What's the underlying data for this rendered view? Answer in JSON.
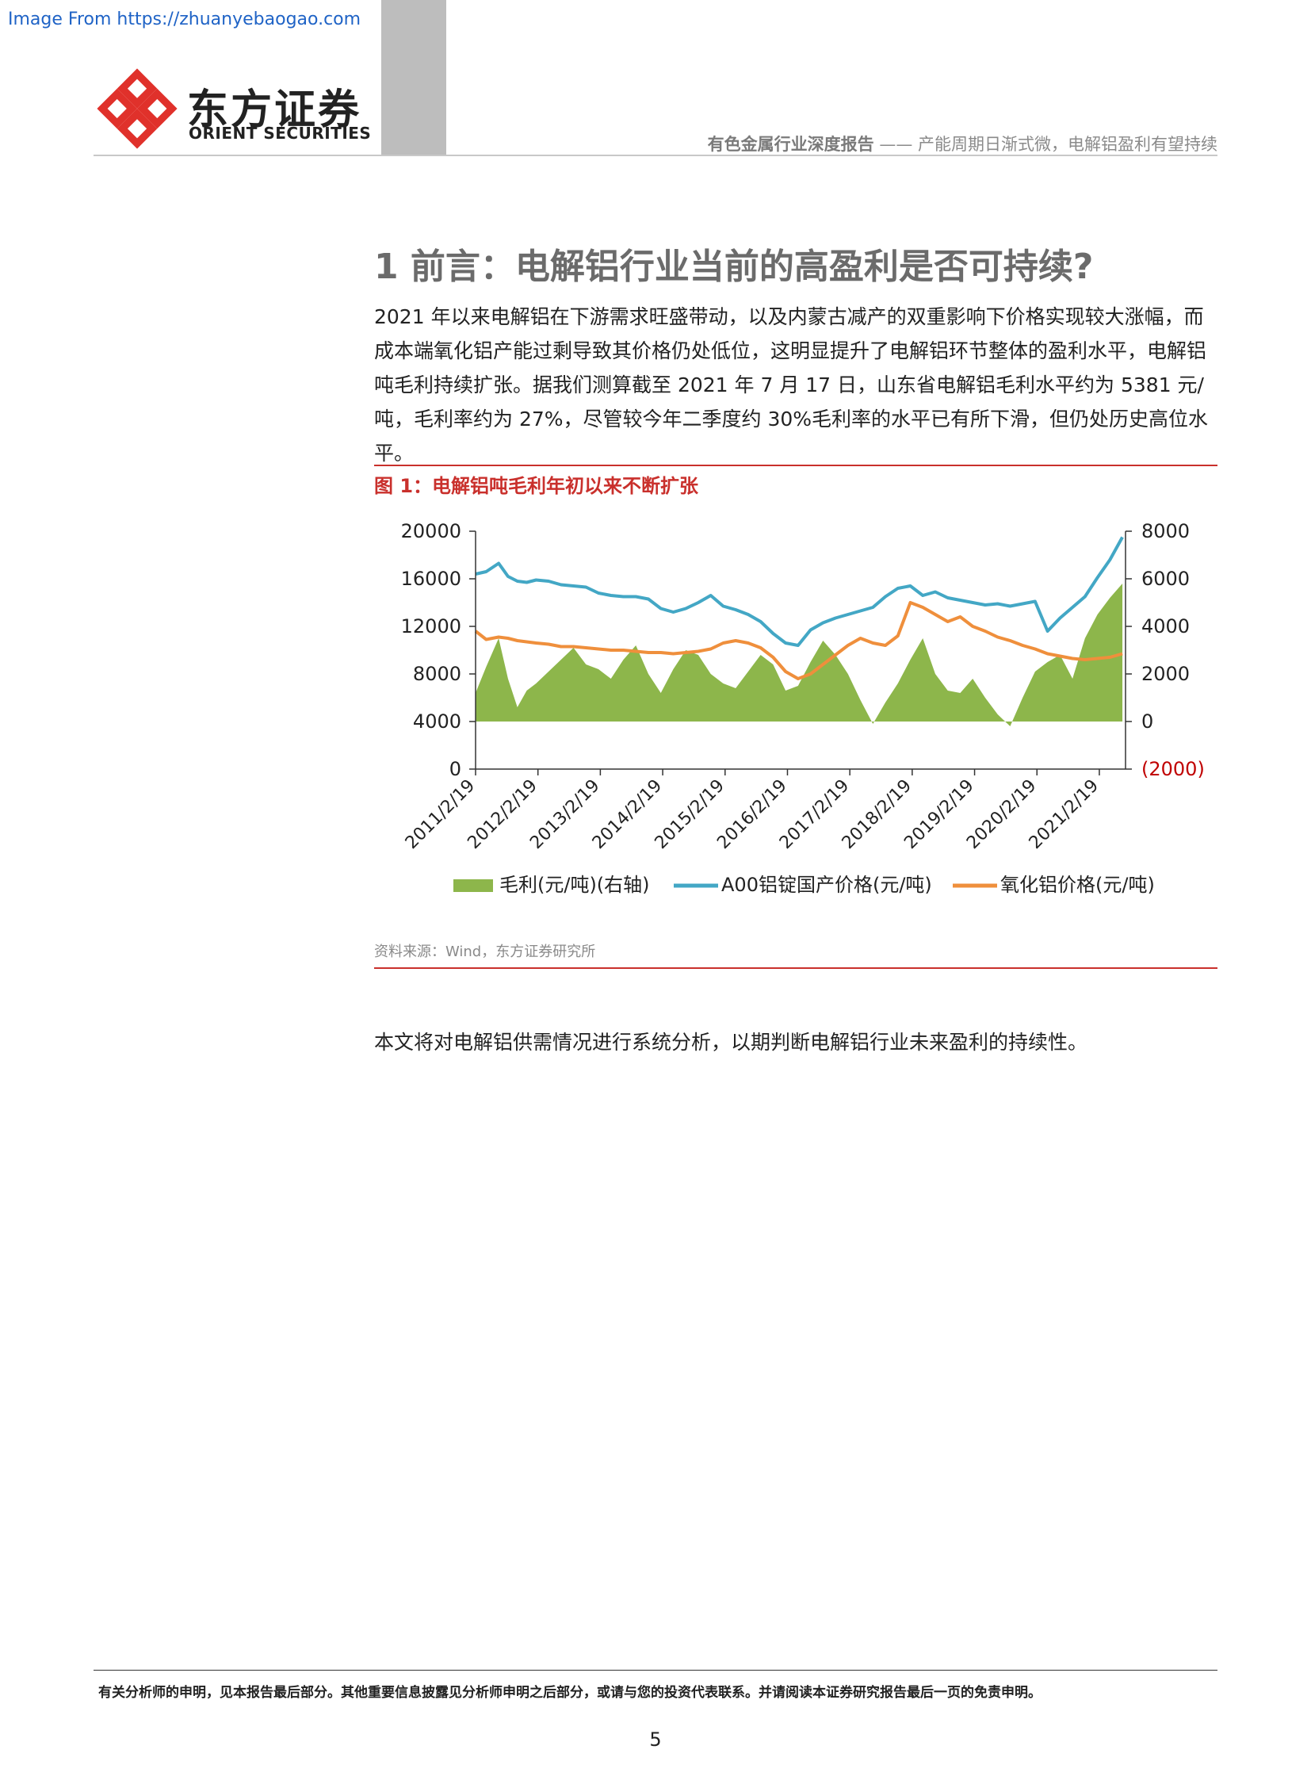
{
  "watermark": "Image From https://zhuanyebaogao.com",
  "logo": {
    "cn": "东方证券",
    "en": "ORIENT SECURITIES"
  },
  "header": {
    "report_type": "有色金属行业深度报告",
    "separator": " —— ",
    "subtitle": "产能周期日渐式微，电解铝盈利有望持续"
  },
  "section": {
    "title": "1 前言：电解铝行业当前的高盈利是否可持续?",
    "paragraph": "2021 年以来电解铝在下游需求旺盛带动，以及内蒙古减产的双重影响下价格实现较大涨幅，而成本端氧化铝产能过剩导致其价格仍处低位，这明显提升了电解铝环节整体的盈利水平，电解铝吨毛利持续扩张。据我们测算截至 2021 年 7 月 17 日，山东省电解铝毛利水平约为 5381 元/吨，毛利率约为 27%，尽管较今年二季度约 30%毛利率的水平已有所下滑，但仍处历史高位水平。"
  },
  "figure": {
    "title": "图 1：电解铝吨毛利年初以来不断扩张",
    "source": "资料来源：Wind，东方证券研究所"
  },
  "chart_data": {
    "type": "line",
    "left_axis": {
      "ticks": [
        "0",
        "4000",
        "8000",
        "12000",
        "16000",
        "20000"
      ],
      "range": [
        0,
        20000
      ]
    },
    "right_axis": {
      "ticks": [
        "(2000)",
        "0",
        "2000",
        "4000",
        "6000",
        "8000"
      ],
      "range": [
        -2000,
        8000
      ],
      "negative_color": "#c00000"
    },
    "x_ticks": [
      "2011/2/19",
      "2012/2/19",
      "2013/2/19",
      "2014/2/19",
      "2015/2/19",
      "2016/2/19",
      "2017/2/19",
      "2018/2/19",
      "2019/2/19",
      "2020/2/19",
      "2021/2/19"
    ],
    "x": [
      2011.13,
      2011.3,
      2011.5,
      2011.65,
      2011.8,
      2011.95,
      2012.1,
      2012.3,
      2012.5,
      2012.7,
      2012.9,
      2013.1,
      2013.3,
      2013.5,
      2013.7,
      2013.9,
      2014.1,
      2014.3,
      2014.5,
      2014.7,
      2014.9,
      2015.1,
      2015.3,
      2015.5,
      2015.7,
      2015.9,
      2016.1,
      2016.3,
      2016.5,
      2016.7,
      2016.9,
      2017.1,
      2017.3,
      2017.5,
      2017.7,
      2017.9,
      2018.1,
      2018.3,
      2018.5,
      2018.7,
      2018.9,
      2019.1,
      2019.3,
      2019.5,
      2019.7,
      2019.9,
      2020.1,
      2020.3,
      2020.5,
      2020.7,
      2020.9,
      2021.1,
      2021.3,
      2021.5
    ],
    "series": [
      {
        "name": "毛利(元/吨)(右轴)",
        "type": "area",
        "axis": "right",
        "color": "#8db64b",
        "values": [
          1200,
          2300,
          3500,
          1800,
          600,
          1300,
          1600,
          2100,
          2600,
          3100,
          2400,
          2200,
          1800,
          2600,
          3200,
          2000,
          1200,
          2200,
          3000,
          2800,
          2000,
          1600,
          1400,
          2100,
          2800,
          2400,
          1300,
          1500,
          2500,
          3400,
          2800,
          2000,
          900,
          -100,
          800,
          1600,
          2600,
          3500,
          2000,
          1300,
          1200,
          1800,
          1000,
          300,
          -200,
          1000,
          2100,
          2500,
          2800,
          1800,
          3500,
          4500,
          5200,
          5800
        ]
      },
      {
        "name": "A00铝锭国产价格(元/吨)",
        "type": "line",
        "axis": "left",
        "color": "#43a7c5",
        "values": [
          16400,
          16600,
          17300,
          16200,
          15800,
          15700,
          15900,
          15800,
          15500,
          15400,
          15300,
          14800,
          14600,
          14500,
          14500,
          14300,
          13500,
          13200,
          13500,
          14000,
          14600,
          13700,
          13400,
          13000,
          12400,
          11400,
          10600,
          10400,
          11700,
          12300,
          12700,
          13000,
          13300,
          13600,
          14500,
          15200,
          15400,
          14600,
          14900,
          14400,
          14200,
          14000,
          13800,
          13900,
          13700,
          13900,
          14100,
          11600,
          12700,
          13600,
          14500,
          16100,
          17600,
          19500
        ]
      },
      {
        "name": "氧化铝价格(元/吨)",
        "type": "line",
        "axis": "left",
        "color": "#ef8f3c",
        "values": [
          11600,
          10900,
          11100,
          11000,
          10800,
          10700,
          10600,
          10500,
          10300,
          10300,
          10200,
          10100,
          10000,
          10000,
          9900,
          9800,
          9800,
          9700,
          9800,
          9900,
          10100,
          10600,
          10800,
          10600,
          10200,
          9400,
          8200,
          7600,
          8000,
          8800,
          9600,
          10400,
          11000,
          10600,
          10400,
          11200,
          14000,
          13600,
          13000,
          12400,
          12800,
          12000,
          11600,
          11100,
          10800,
          10400,
          10100,
          9700,
          9500,
          9300,
          9200,
          9300,
          9400,
          9700
        ]
      }
    ],
    "legend_position": "bottom"
  },
  "closing_paragraph": "本文将对电解铝供需情况进行系统分析，以期判断电解铝行业未来盈利的持续性。",
  "footer": {
    "disclaimer": "有关分析师的申明，见本报告最后部分。其他重要信息披露见分析师申明之后部分，或请与您的投资代表联系。并请阅读本证券研究报告最后一页的免责申明。",
    "page_number": "5"
  },
  "colors": {
    "accent_red": "#c9302c",
    "logo_red": "#e0312b",
    "gray_bar": "#bdbdbd"
  }
}
